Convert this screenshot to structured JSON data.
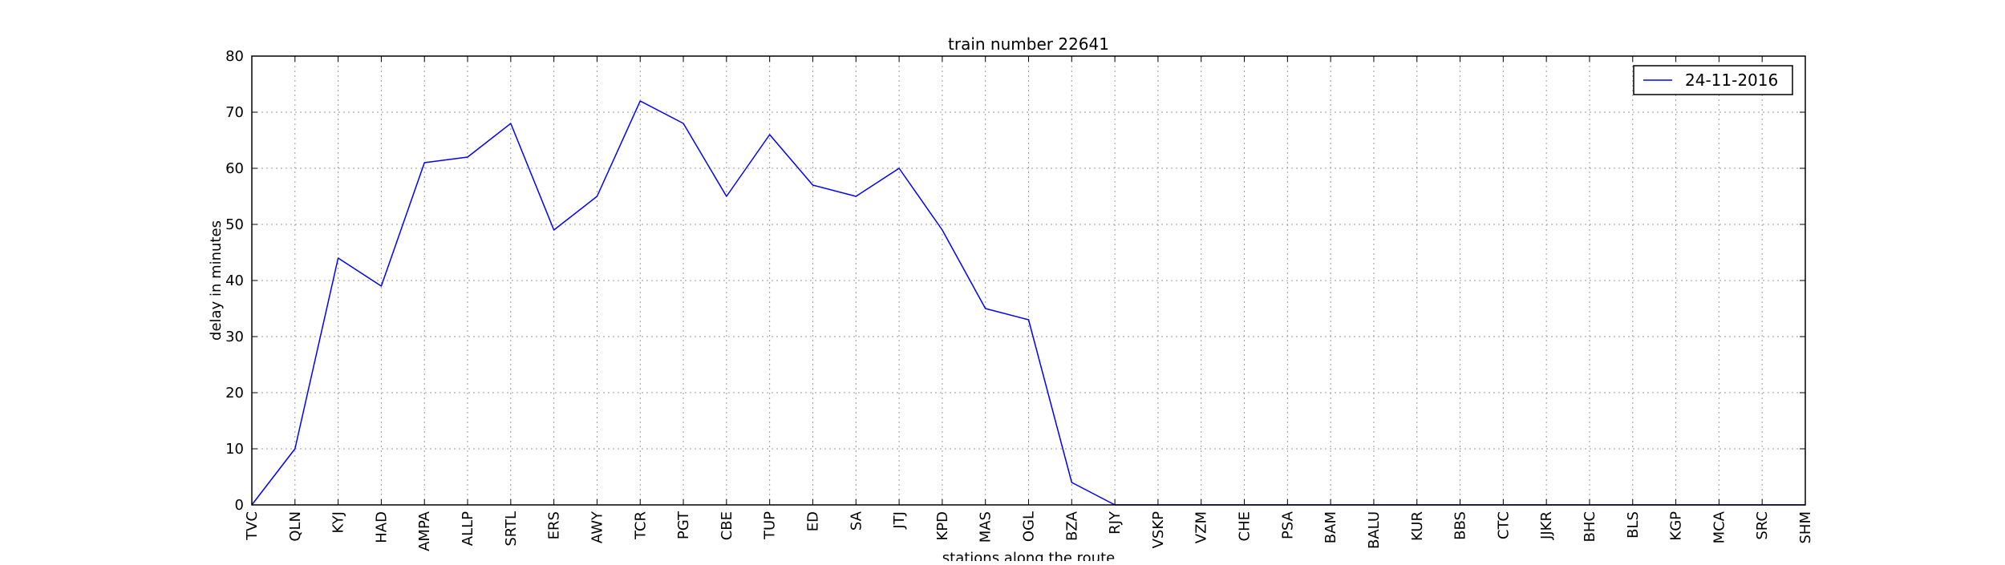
{
  "chart_data": {
    "type": "line",
    "title": "train number 22641",
    "xlabel": "stations along the route",
    "ylabel": "delay in minutes",
    "categories": [
      "TVC",
      "QLN",
      "KYJ",
      "HAD",
      "AMPA",
      "ALLP",
      "SRTL",
      "ERS",
      "AWY",
      "TCR",
      "PGT",
      "CBE",
      "TUP",
      "ED",
      "SA",
      "JTJ",
      "KPD",
      "MAS",
      "OGL",
      "BZA",
      "RJY",
      "VSKP",
      "VZM",
      "CHE",
      "PSA",
      "BAM",
      "BALU",
      "KUR",
      "BBS",
      "CTC",
      "JJKR",
      "BHC",
      "BLS",
      "KGP",
      "MCA",
      "SRC",
      "SHM"
    ],
    "series": [
      {
        "name": "24-11-2016",
        "color": "#0000ff",
        "values": [
          0,
          10,
          44,
          39,
          61,
          62,
          68,
          49,
          55,
          72,
          68,
          55,
          66,
          57,
          55,
          60,
          49,
          35,
          33,
          4,
          0,
          0,
          0,
          0,
          0,
          0,
          0,
          0,
          0,
          0,
          0,
          0,
          0,
          0,
          0,
          0,
          0
        ]
      }
    ],
    "ylim": [
      0,
      80
    ],
    "yticks": [
      0,
      10,
      20,
      30,
      40,
      50,
      60,
      70,
      80
    ],
    "grid": true,
    "legend_position": "top-right"
  }
}
